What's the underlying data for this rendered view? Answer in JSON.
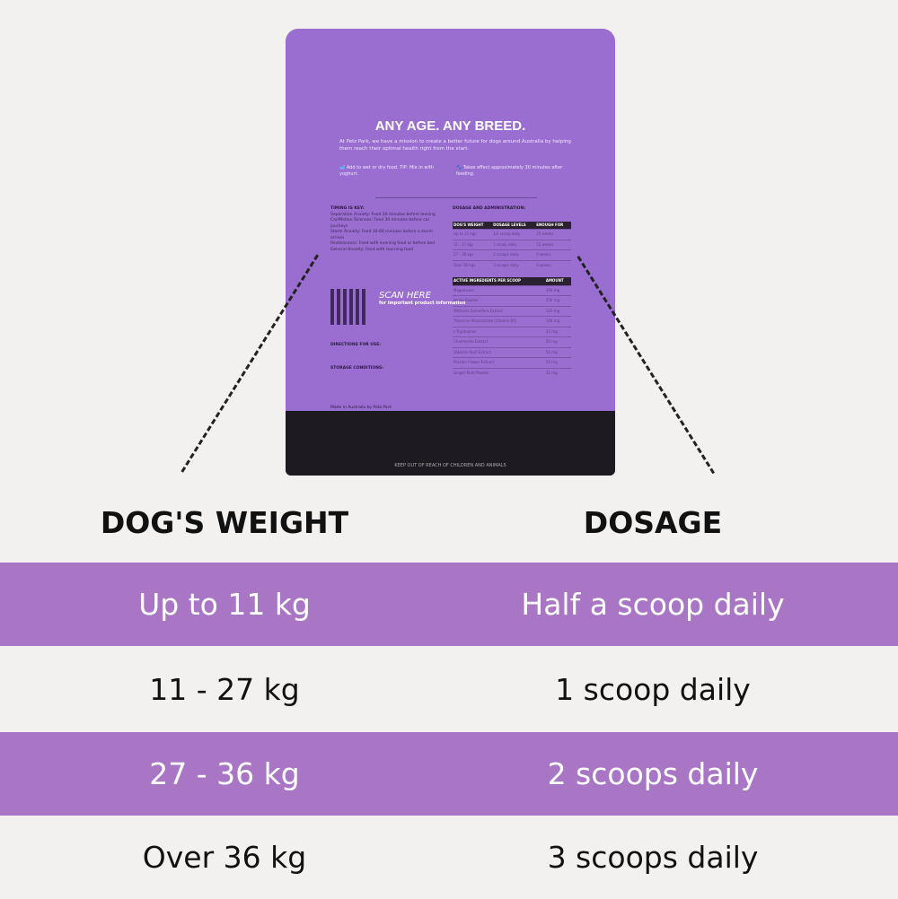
{
  "bag": {
    "headline": "ANY AGE. ANY BREED.",
    "mission": "At Petz Park, we have a mission to create a better future for dogs around Australia by helping them reach their optimal health right from the start.",
    "tip": "Add to wet or dry food. TIP: Mix in with yoghurt.",
    "effect": "Takes effect approximately 30 minutes after feeding.",
    "timing_title": "TIMING IS KEY:",
    "timing": [
      "Separation Anxiety: Feed 30 minutes before leaving",
      "Car/Motion Sickness: Feed 30 minutes before car journeys",
      "Storm Anxiety: Feed 30-60 minutes before a storm arrives",
      "Restlessness: Feed with evening food or before bed",
      "General Anxiety: Feed with morning food"
    ],
    "scan": "SCAN HERE",
    "scan_sub": "for important product information",
    "directions_title": "DIRECTIONS FOR USE:",
    "storage_title": "STORAGE CONDITIONS:",
    "dosage_title": "DOSAGE AND ADMINISTRATION:",
    "dose_headers": [
      "DOG'S WEIGHT",
      "DOSAGE LEVELS",
      "ENOUGH FOR"
    ],
    "dose_rows": [
      [
        "Up to 11 kgs",
        "1/2 scoop daily",
        "25 weeks"
      ],
      [
        "11 - 27 kgs",
        "1 scoop daily",
        "12 weeks"
      ],
      [
        "27 - 36 kgs",
        "2 scoops daily",
        "6 weeks"
      ],
      [
        "Over 36 kgs",
        "3 scoops daily",
        "4 weeks"
      ]
    ],
    "ing_headers": [
      "ACTIVE INGREDIENTS PER SCOOP",
      "AMOUNT"
    ],
    "ingredients": [
      [
        "Magnesium",
        "300 mg"
      ],
      [
        "Hemp Powder",
        "250 mg"
      ],
      [
        "Withania Somnifera Extract",
        "125 mg"
      ],
      [
        "Thiamine Mononitrate (Vitamin B1)",
        "100 mg"
      ],
      [
        "L-Tryptophan",
        "25 mg"
      ],
      [
        "Chamomile Extract",
        "50 mg"
      ],
      [
        "Valerian Root Extract",
        "50 mg"
      ],
      [
        "Passion Flower Extract",
        "50 mg"
      ],
      [
        "Ginger Root Powder",
        "25 mg"
      ]
    ],
    "made_in": "Made in Australia by Petz Park",
    "keep_out": "KEEP OUT OF REACH OF CHILDREN AND ANIMALS"
  },
  "headers": {
    "weight": "DOG'S WEIGHT",
    "dosage": "DOSAGE"
  },
  "rows": [
    {
      "weight": "Up to 11 kg",
      "dosage": "Half a scoop daily"
    },
    {
      "weight": "11 - 27 kg",
      "dosage": "1 scoop daily"
    },
    {
      "weight": "27 - 36 kg",
      "dosage": "2 scoops daily"
    },
    {
      "weight": "Over 36 kg",
      "dosage": "3 scoops daily"
    }
  ],
  "colors": {
    "band": "#a976c5",
    "bag": "#9a6ed0"
  }
}
